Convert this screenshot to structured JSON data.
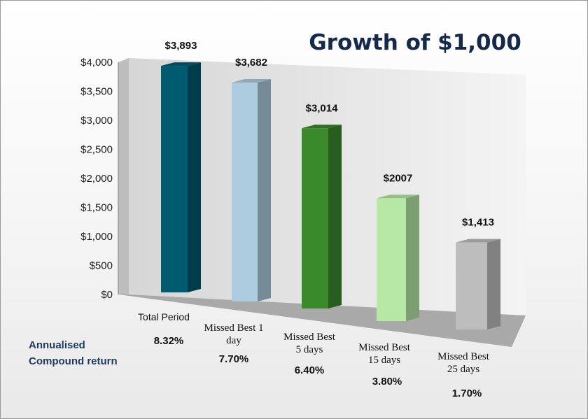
{
  "chart_data": {
    "type": "bar",
    "title": "Growth of $1,000",
    "categories": [
      [
        "Total Period"
      ],
      [
        "Missed Best 1",
        "day"
      ],
      [
        "Missed Best",
        "5 days"
      ],
      [
        "Missed Best",
        "15 days"
      ],
      [
        "Missed Best",
        "25 days"
      ]
    ],
    "values": [
      3893,
      3682,
      3014,
      2007,
      1413
    ],
    "value_labels": [
      "$3,893",
      "$3,682",
      "$3,014",
      "$2007",
      "$1,413"
    ],
    "annualised_returns": [
      "8.32%",
      "7.70%",
      "6.40%",
      "3.80%",
      "1.70%"
    ],
    "return_label": [
      "Annualised",
      "Compound return"
    ],
    "yticks": [
      "$0",
      "$500",
      "$1,000",
      "$1,500",
      "$2,000",
      "$2,500",
      "$3,000",
      "$3,500",
      "$4,000"
    ],
    "ylim": [
      0,
      4000
    ],
    "grid": false,
    "colors": [
      "#005a70",
      "#aeccdf",
      "#3a8a2c",
      "#b7e8a6",
      "#bdbdbd"
    ]
  }
}
